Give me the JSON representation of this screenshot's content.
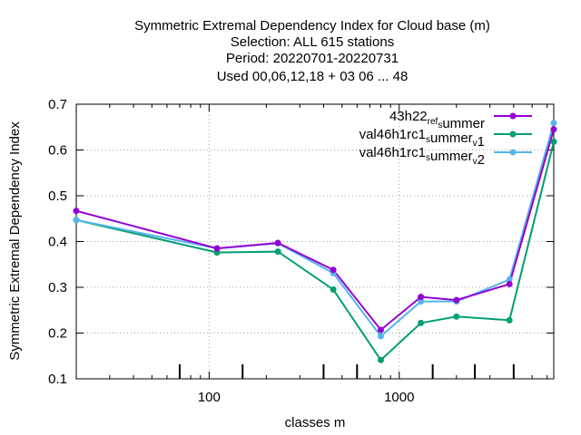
{
  "chart_data": {
    "type": "line",
    "title_lines": [
      "Symmetric Extremal Dependency Index  for Cloud base (m)",
      "Selection: ALL    615 stations",
      "Period: 20220701-20220731",
      "Used  00,06,12,18  + 03 06 ... 48"
    ],
    "xlabel": "classes m",
    "ylabel": "Symmetric Extremal Dependency Index",
    "x_scale": "log",
    "xlim": [
      20,
      6500
    ],
    "ylim": [
      0.1,
      0.7
    ],
    "x_ticks": [
      100,
      1000
    ],
    "y_ticks": [
      0.1,
      0.2,
      0.3,
      0.4,
      0.5,
      0.6,
      0.7
    ],
    "grid": true,
    "legend_position": "top-right",
    "data_marks_x": [
      70,
      150,
      400,
      600,
      1500,
      2500,
      4000
    ],
    "x": [
      20,
      110,
      230,
      450,
      800,
      1300,
      2000,
      3800,
      6500
    ],
    "series": [
      {
        "name": "43h22_ref_summer",
        "legend": [
          {
            "t": "43h22",
            "sub": false
          },
          {
            "t": "ref",
            "sub": true
          },
          {
            "t": "s",
            "sub": true
          },
          {
            "t": "ummer",
            "sub": false
          }
        ],
        "color": "#9400d3",
        "values": [
          0.467,
          0.385,
          0.397,
          0.338,
          0.207,
          0.279,
          0.272,
          0.307,
          0.645
        ]
      },
      {
        "name": "val46h1rc1_summer_v1",
        "legend": [
          {
            "t": "val46h1rc1",
            "sub": false
          },
          {
            "t": "s",
            "sub": true
          },
          {
            "t": "ummer",
            "sub": false
          },
          {
            "t": "v",
            "sub": true
          },
          {
            "t": "1",
            "sub": false
          }
        ],
        "color": "#009e73",
        "values": [
          0.447,
          0.376,
          0.378,
          0.295,
          0.141,
          0.222,
          0.236,
          0.228,
          0.618
        ]
      },
      {
        "name": "val46h1rc1_summer_v2",
        "legend": [
          {
            "t": "val46h1rc1",
            "sub": false
          },
          {
            "t": "s",
            "sub": true
          },
          {
            "t": "ummer",
            "sub": false
          },
          {
            "t": "v",
            "sub": true
          },
          {
            "t": "2",
            "sub": false
          }
        ],
        "color": "#56b4e9",
        "values": [
          0.447,
          0.385,
          0.396,
          0.331,
          0.193,
          0.269,
          0.269,
          0.317,
          0.659
        ]
      }
    ]
  }
}
